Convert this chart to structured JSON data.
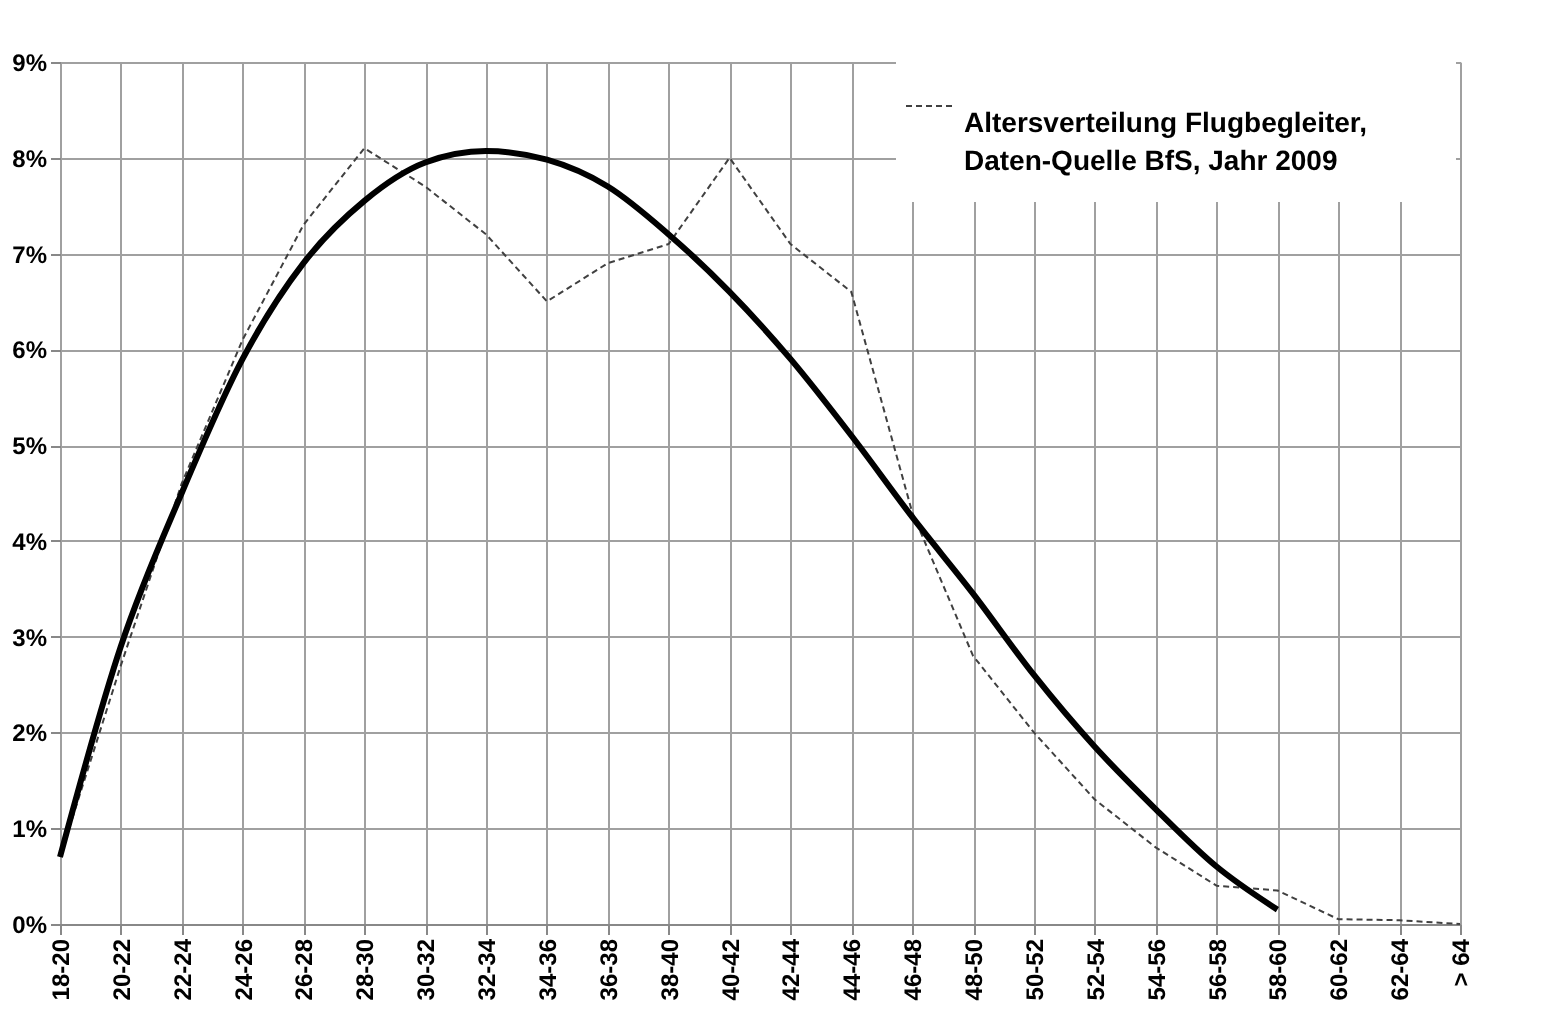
{
  "chart_data": {
    "type": "line",
    "categories": [
      "18-20",
      "20-22",
      "22-24",
      "24-26",
      "26-28",
      "28-30",
      "30-32",
      "32-34",
      "34-36",
      "36-38",
      "38-40",
      "40-42",
      "42-44",
      "44-46",
      "46-48",
      "48-50",
      "50-52",
      "52-54",
      "54-56",
      "56-58",
      "58-60",
      "60-62",
      "62-64",
      "> 64"
    ],
    "series": [
      {
        "name": "Altersverteilung Flugbegleiter, Daten-Quelle BfS, Jahr 2009",
        "color": "#404040",
        "line_style": "dashed",
        "values": [
          0.7,
          2.7,
          4.6,
          6.1,
          7.3,
          8.1,
          7.7,
          7.2,
          6.5,
          6.9,
          7.1,
          8.0,
          7.1,
          6.6,
          4.3,
          2.8,
          2.0,
          1.3,
          0.8,
          0.4,
          0.35,
          0.05,
          0.04,
          0.0
        ]
      },
      {
        "type": "line",
        "color": "#000000",
        "line_style": "solid",
        "values": [
          0.7,
          2.9,
          4.5,
          5.9,
          6.9,
          7.55,
          7.95,
          8.07,
          7.98,
          7.7,
          7.2,
          6.6,
          5.9,
          5.1,
          4.25,
          3.45,
          2.6,
          1.85,
          1.2,
          0.6,
          0.15,
          null,
          null,
          null
        ]
      }
    ],
    "ylim": [
      0,
      9
    ],
    "yticks": [
      {
        "value": 0,
        "label": "0%"
      },
      {
        "value": 1,
        "label": "1%"
      },
      {
        "value": 2,
        "label": "2%"
      },
      {
        "value": 3,
        "label": "3%"
      },
      {
        "value": 4,
        "label": "4%"
      },
      {
        "value": 5,
        "label": "5%"
      },
      {
        "value": 6,
        "label": "6%"
      },
      {
        "value": 7,
        "label": "7%"
      },
      {
        "value": 8,
        "label": "8%"
      },
      {
        "value": 9,
        "label": "9%"
      }
    ],
    "grid": true,
    "legend": "top right",
    "marker": "none"
  }
}
